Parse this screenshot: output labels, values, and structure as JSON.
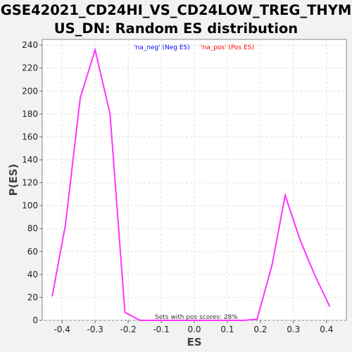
{
  "chart_data": {
    "type": "line",
    "title_line1": "GSE42021_CD24HI_VS_CD24LOW_TREG_THYM",
    "title_line2": "US_DN: Random ES distribution",
    "xlabel": "ES",
    "ylabel": "P(ES)",
    "xlim": [
      -0.46,
      0.46
    ],
    "ylim": [
      0,
      245
    ],
    "x_ticks": [
      "-0.4",
      "-0.3",
      "-0.2",
      "-0.1",
      "0.0",
      "0.1",
      "0.2",
      "0.3",
      "0.4"
    ],
    "x_tick_values": [
      -0.4,
      -0.3,
      -0.2,
      -0.1,
      0.0,
      0.1,
      0.2,
      0.3,
      0.4
    ],
    "y_ticks": [
      "0",
      "20",
      "40",
      "60",
      "80",
      "100",
      "120",
      "140",
      "160",
      "180",
      "200",
      "220",
      "240"
    ],
    "y_tick_values": [
      0,
      20,
      40,
      60,
      80,
      100,
      120,
      140,
      160,
      180,
      200,
      220,
      240
    ],
    "grid": true,
    "legend": [
      {
        "label": "'na_neg' (Neg ES)",
        "color": "#0000ff"
      },
      {
        "label": "'na_pos' (Pos ES)",
        "color": "#ff0000"
      }
    ],
    "annotation": "Sets with pos scores: 28%",
    "series": [
      {
        "color": "#ff33ff",
        "x": [
          -0.43,
          -0.39,
          -0.345,
          -0.3,
          -0.255,
          -0.21,
          -0.165,
          -0.12,
          -0.075,
          -0.03,
          0.015,
          0.06,
          0.105,
          0.15,
          0.19,
          0.235,
          0.275,
          0.32,
          0.365,
          0.41
        ],
        "y": [
          21,
          83,
          194,
          236,
          180,
          7,
          0,
          0,
          0,
          0,
          0,
          0,
          0,
          0,
          1,
          48,
          109,
          70,
          39,
          12
        ]
      }
    ]
  }
}
